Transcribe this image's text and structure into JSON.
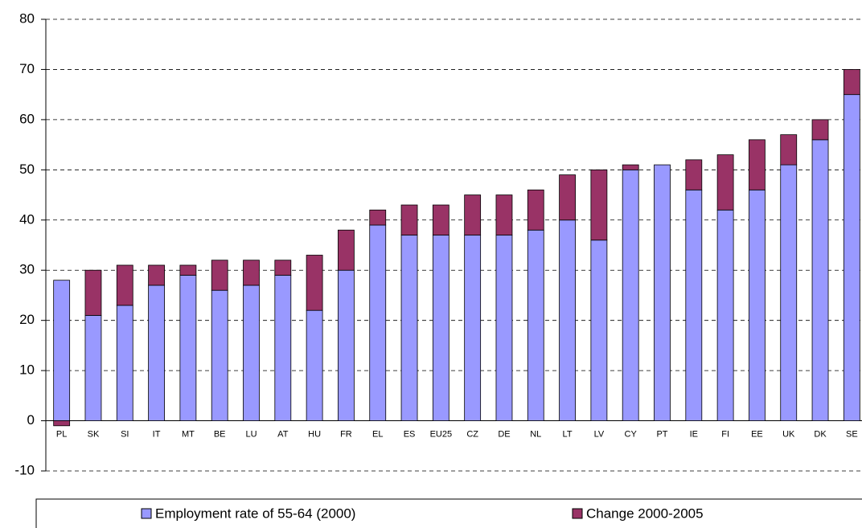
{
  "chart_data": {
    "type": "stacked_bar",
    "categories": [
      "PL",
      "SK",
      "SI",
      "IT",
      "MT",
      "BE",
      "LU",
      "AT",
      "HU",
      "FR",
      "EL",
      "ES",
      "EU25",
      "CZ",
      "DE",
      "NL",
      "LT",
      "LV",
      "CY",
      "PT",
      "IE",
      "FI",
      "EE",
      "UK",
      "DK",
      "SE"
    ],
    "series": [
      {
        "name": "Employment rate of 55-64 (2000)",
        "color": "#9999ff",
        "values": [
          28,
          21,
          23,
          27,
          29,
          26,
          27,
          29,
          22,
          30,
          39,
          37,
          37,
          37,
          37,
          38,
          40,
          36,
          50,
          51,
          46,
          42,
          46,
          51,
          56,
          65
        ]
      },
      {
        "name": "Change 2000-2005",
        "color": "#993366",
        "values": [
          -1,
          9,
          8,
          4,
          2,
          6,
          5,
          3,
          11,
          8,
          3,
          6,
          6,
          8,
          8,
          8,
          9,
          14,
          1,
          0,
          6,
          11,
          10,
          6,
          4,
          5
        ]
      }
    ],
    "ylim": [
      -10,
      80
    ],
    "yticks": [
      -10,
      0,
      10,
      20,
      30,
      40,
      50,
      60,
      70,
      80
    ],
    "grid": true,
    "legend": "bottom"
  }
}
